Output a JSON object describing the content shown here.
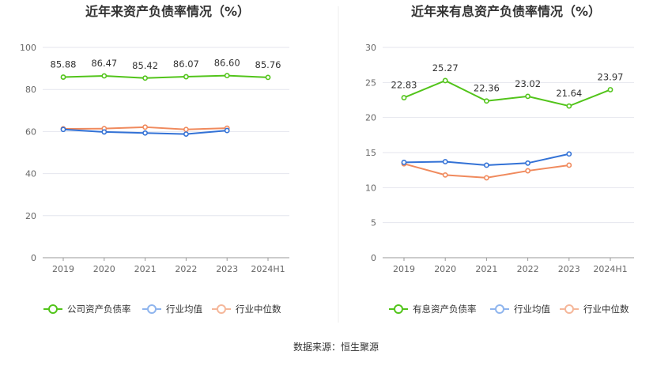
{
  "source_text": "数据来源：恒生聚源",
  "chart_data": [
    {
      "type": "line",
      "title": "近年来资产负债率情况（%）",
      "categories": [
        "2019",
        "2020",
        "2021",
        "2022",
        "2023",
        "2024H1"
      ],
      "ylim": [
        0,
        100
      ],
      "yticks": [
        0,
        20,
        40,
        60,
        80,
        100
      ],
      "grid": true,
      "legend_position": "bottom",
      "series": [
        {
          "name": "公司资产负债率",
          "color": "#52c41a",
          "values": [
            85.88,
            86.47,
            85.42,
            86.07,
            86.6,
            85.76
          ],
          "labels": [
            "85.88",
            "86.47",
            "85.42",
            "86.07",
            "86.60",
            "85.76"
          ]
        },
        {
          "name": "行业均值",
          "color": "#3372d6",
          "legend_color": "#8fb5ee",
          "values": [
            61.0,
            59.8,
            59.3,
            58.8,
            60.5,
            null
          ]
        },
        {
          "name": "行业中位数",
          "color": "#f08a5d",
          "legend_color": "#f5b79a",
          "values": [
            61.3,
            61.4,
            62.1,
            61.0,
            61.6,
            null
          ]
        }
      ]
    },
    {
      "type": "line",
      "title": "近年来有息资产负债率情况（%）",
      "categories": [
        "2019",
        "2020",
        "2021",
        "2022",
        "2023",
        "2024H1"
      ],
      "ylim": [
        0,
        30
      ],
      "yticks": [
        0,
        5,
        10,
        15,
        20,
        25,
        30
      ],
      "grid": true,
      "legend_position": "bottom",
      "series": [
        {
          "name": "有息资产负债率",
          "color": "#52c41a",
          "values": [
            22.83,
            25.27,
            22.36,
            23.02,
            21.64,
            23.97
          ],
          "labels": [
            "22.83",
            "25.27",
            "22.36",
            "23.02",
            "21.64",
            "23.97"
          ]
        },
        {
          "name": "行业均值",
          "color": "#3372d6",
          "legend_color": "#8fb5ee",
          "values": [
            13.6,
            13.7,
            13.2,
            13.5,
            14.8,
            null
          ]
        },
        {
          "name": "行业中位数",
          "color": "#f08a5d",
          "legend_color": "#f5b79a",
          "values": [
            13.4,
            11.8,
            11.4,
            12.4,
            13.2,
            null
          ]
        }
      ]
    }
  ]
}
